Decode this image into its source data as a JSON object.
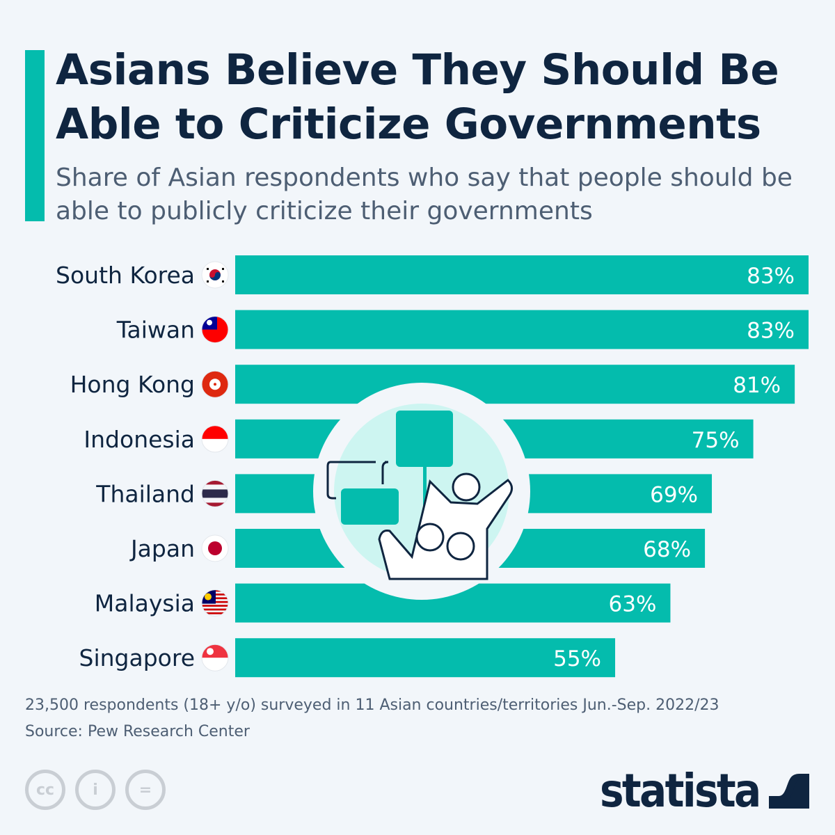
{
  "title": "Asians Believe They Should Be Able to Criticize Governments",
  "subtitle": "Share of Asian respondents who say that people should be able to publicly criticize their governments",
  "colors": {
    "bar": "#04bcad",
    "title": "#0f2540",
    "text": "#4d5e73",
    "background": "#f2f6fa"
  },
  "chart_data": {
    "type": "bar",
    "orientation": "horizontal",
    "categories": [
      "South Korea",
      "Taiwan",
      "Hong Kong",
      "Indonesia",
      "Thailand",
      "Japan",
      "Malaysia",
      "Singapore"
    ],
    "values": [
      83,
      83,
      81,
      75,
      69,
      68,
      63,
      55
    ],
    "value_labels": [
      "83%",
      "83%",
      "81%",
      "75%",
      "69%",
      "68%",
      "63%",
      "55%"
    ],
    "flag_icons": [
      "south-korea-flag-icon",
      "taiwan-flag-icon",
      "hong-kong-flag-icon",
      "indonesia-flag-icon",
      "thailand-flag-icon",
      "japan-flag-icon",
      "malaysia-flag-icon",
      "singapore-flag-icon"
    ],
    "xlim": [
      0,
      83
    ],
    "grid": false
  },
  "footer": {
    "note": "23,500 respondents (18+ y/o) surveyed in 11 Asian countries/territories Jun.-Sep. 2022/23",
    "source": "Source: Pew Research Center"
  },
  "license_icons": [
    "cc-icon",
    "attribution-icon",
    "no-derivatives-icon"
  ],
  "logo": "statista"
}
